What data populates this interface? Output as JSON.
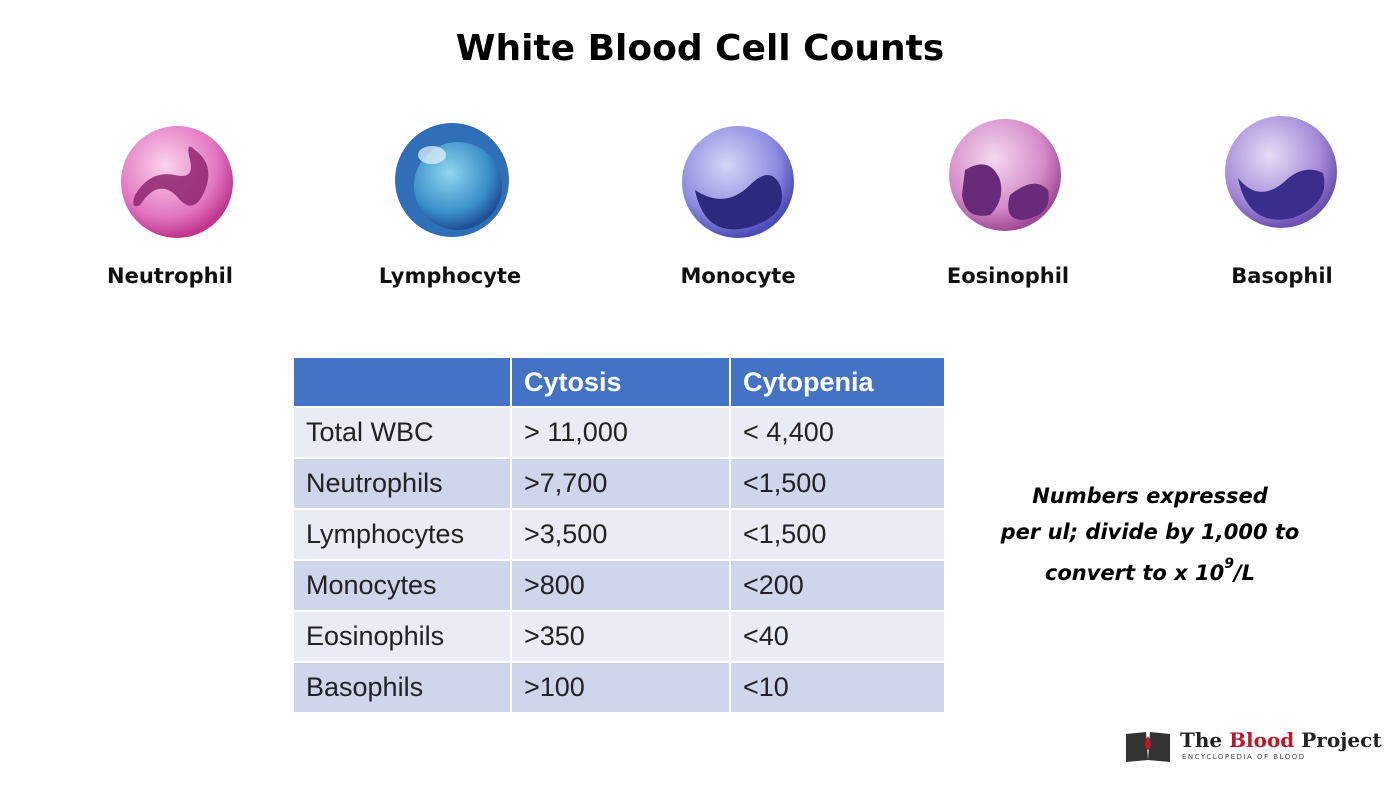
{
  "title": "White Blood Cell Counts",
  "cells": [
    "Neutrophil",
    "Lymphocyte",
    "Monocyte",
    "Eosinophil",
    "Basophil"
  ],
  "table": {
    "header": [
      "Cytosis",
      "Cytopenia"
    ],
    "rows": [
      [
        "Total WBC",
        "> 11,000",
        "< 4,400"
      ],
      [
        "Neutrophils",
        ">7,700",
        "<1,500"
      ],
      [
        "Lymphocytes",
        ">3,500",
        "<1,500"
      ],
      [
        "Monocytes",
        ">800",
        "<200"
      ],
      [
        "Eosinophils",
        ">350",
        "<40"
      ],
      [
        "Basophils",
        ">100",
        "<10"
      ]
    ]
  },
  "note": {
    "lines": [
      "Numbers expressed",
      "per ul; divide by 1,000 to",
      "convert to x 10"
    ],
    "superscript": "9",
    "suffix": "/L"
  },
  "logo": {
    "the": "The",
    "blood": "Blood",
    "project": "Project",
    "tagline": "ENCYCLOPEDIA OF BLOOD"
  }
}
